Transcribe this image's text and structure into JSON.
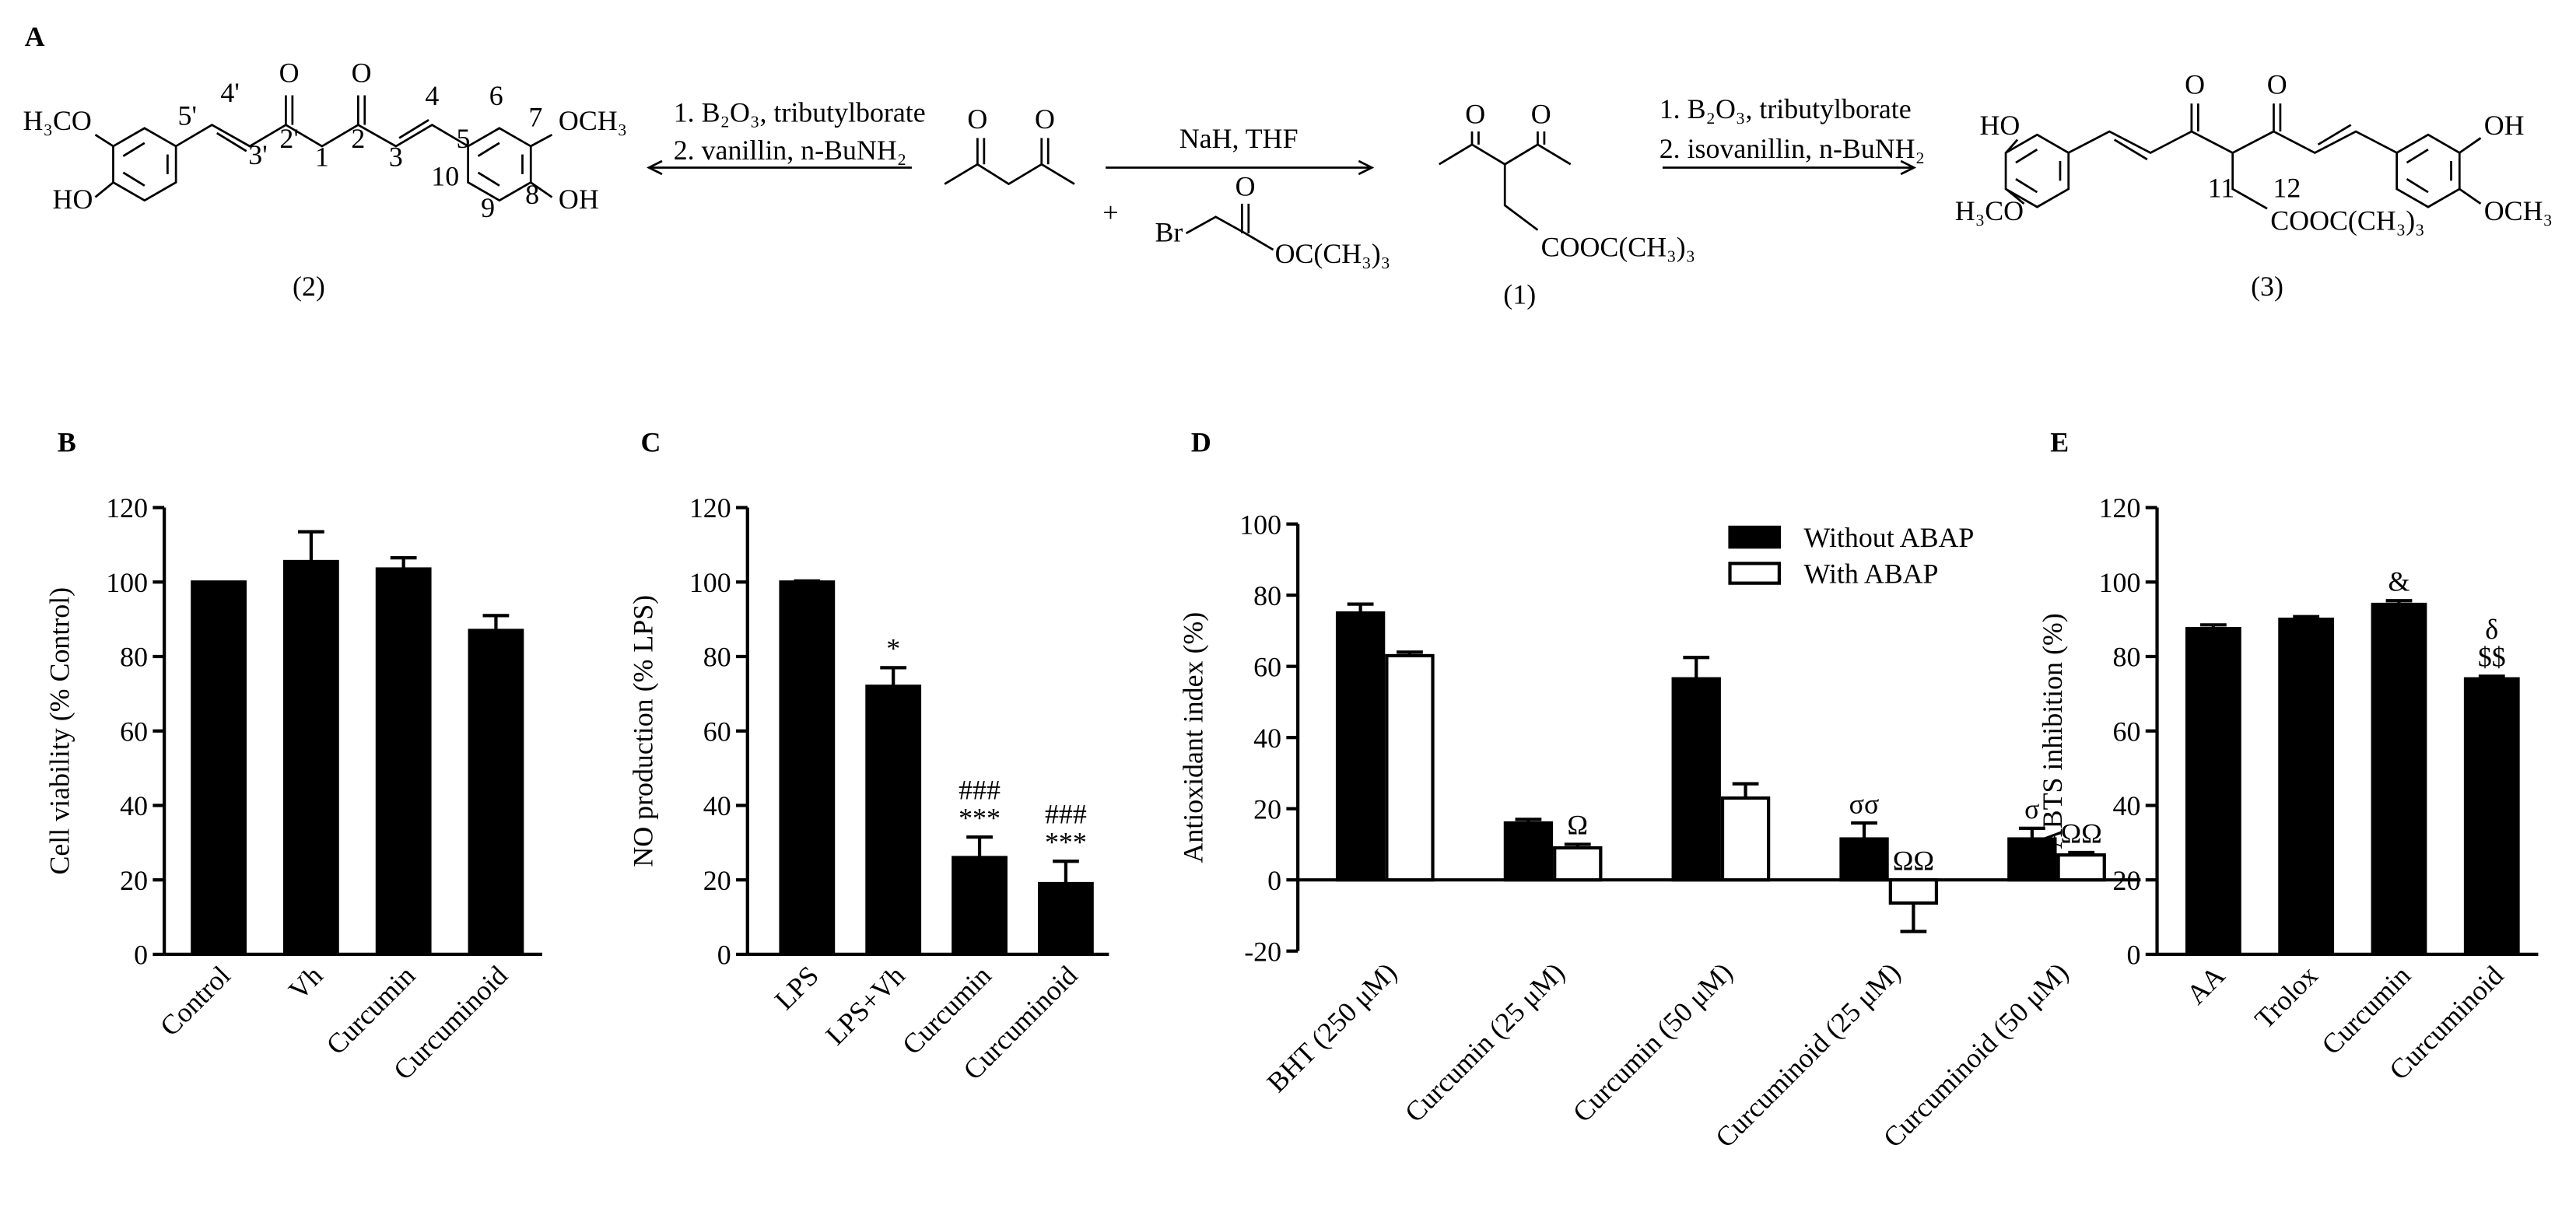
{
  "scheme": {
    "texts": [
      "A",
      "H₃CO",
      "HO",
      "O",
      "O",
      "4'",
      "3'",
      "2'",
      "1",
      "2",
      "3",
      "4",
      "5'",
      "5",
      "6",
      "7",
      "8",
      "9",
      "10",
      "OCH₃",
      "OH",
      "(2)",
      "1. B₂O₃, tributylborate",
      "2. vanillin, n-BuNH₂",
      "O",
      "O",
      "+",
      "NaH, THF",
      "Br",
      "O",
      "OC(CH₃)₃",
      "O",
      "O",
      "COOC(CH₃)₃",
      "(1)",
      "1. B₂O₃, tributylborate",
      "2. isovanillin, n-BuNH₂",
      "HO",
      "H₃CO",
      "O",
      "O",
      "11",
      "12",
      "COOC(CH₃)₃",
      "OH",
      "OCH₃",
      "(3)"
    ]
  },
  "chart_data": [
    {
      "type": "bar",
      "panel": "B",
      "ylabel": "Cell viability (% Control)",
      "categories": [
        "Control",
        "Vh",
        "Curcumin",
        "Curcuminoid"
      ],
      "values": [
        100,
        105.5,
        103.5,
        87
      ],
      "errors": [
        null,
        8,
        3,
        4
      ],
      "color": "#000000",
      "ylim": [
        0,
        120
      ],
      "yticks": [
        0,
        20,
        40,
        60,
        80,
        100,
        120
      ]
    },
    {
      "type": "bar",
      "panel": "C",
      "ylabel": "NO production (% LPS)",
      "categories": [
        "LPS",
        "LPS+Vh",
        "Curcumin",
        "Curcuminoid"
      ],
      "values": [
        100,
        72,
        26,
        19
      ],
      "errors": [
        0.3,
        5,
        5.5,
        6
      ],
      "markers": [
        null,
        [
          "*"
        ],
        [
          "###",
          "***"
        ],
        [
          "###",
          "***"
        ]
      ],
      "color": "#000000",
      "ylim": [
        0,
        120
      ],
      "yticks": [
        0,
        20,
        40,
        60,
        80,
        100,
        120
      ]
    },
    {
      "type": "bar",
      "panel": "D",
      "ylabel": "Antioxidant index (%)",
      "categories": [
        "BHT (250 μM)",
        "Curcumin (25 μM)",
        "Curcumin (50 μM)",
        "Curcuminoid (25 μM)",
        "Curcuminoid (50 μM)"
      ],
      "series": [
        {
          "name": "Without ABAP",
          "color": "#000000",
          "values": [
            75,
            16,
            56.5,
            11.5,
            11.5
          ],
          "errors": [
            2.5,
            1,
            6,
            4.5,
            3
          ],
          "markers": [
            null,
            null,
            null,
            [
              "σσ"
            ],
            [
              "σ"
            ]
          ]
        },
        {
          "name": "With ABAP",
          "color": "#ffffff",
          "values": [
            63,
            9,
            23,
            -6.5,
            7
          ],
          "errors": [
            1,
            1,
            4,
            8,
            0.7
          ],
          "markers": [
            null,
            [
              "Ω"
            ],
            null,
            [
              "ΩΩ"
            ],
            [
              "ΩΩ"
            ]
          ]
        }
      ],
      "edgecolor": "#000000",
      "legend": "upper right",
      "ylim": [
        -20,
        100
      ],
      "yticks": [
        -20,
        0,
        20,
        40,
        60,
        80,
        100
      ]
    },
    {
      "type": "bar",
      "panel": "E",
      "ylabel": "ABTS inhibition (%)",
      "categories": [
        "AA",
        "Trolox",
        "Curcumin",
        "Curcuminoid"
      ],
      "values": [
        87.5,
        90,
        94,
        74
      ],
      "errors": [
        1,
        0.7,
        1,
        0.7
      ],
      "markers": [
        null,
        null,
        [
          "&"
        ],
        [
          "δ",
          "$$"
        ]
      ],
      "color": "#000000",
      "ylim": [
        0,
        120
      ],
      "yticks": [
        0,
        20,
        40,
        60,
        80,
        100,
        120
      ]
    }
  ]
}
